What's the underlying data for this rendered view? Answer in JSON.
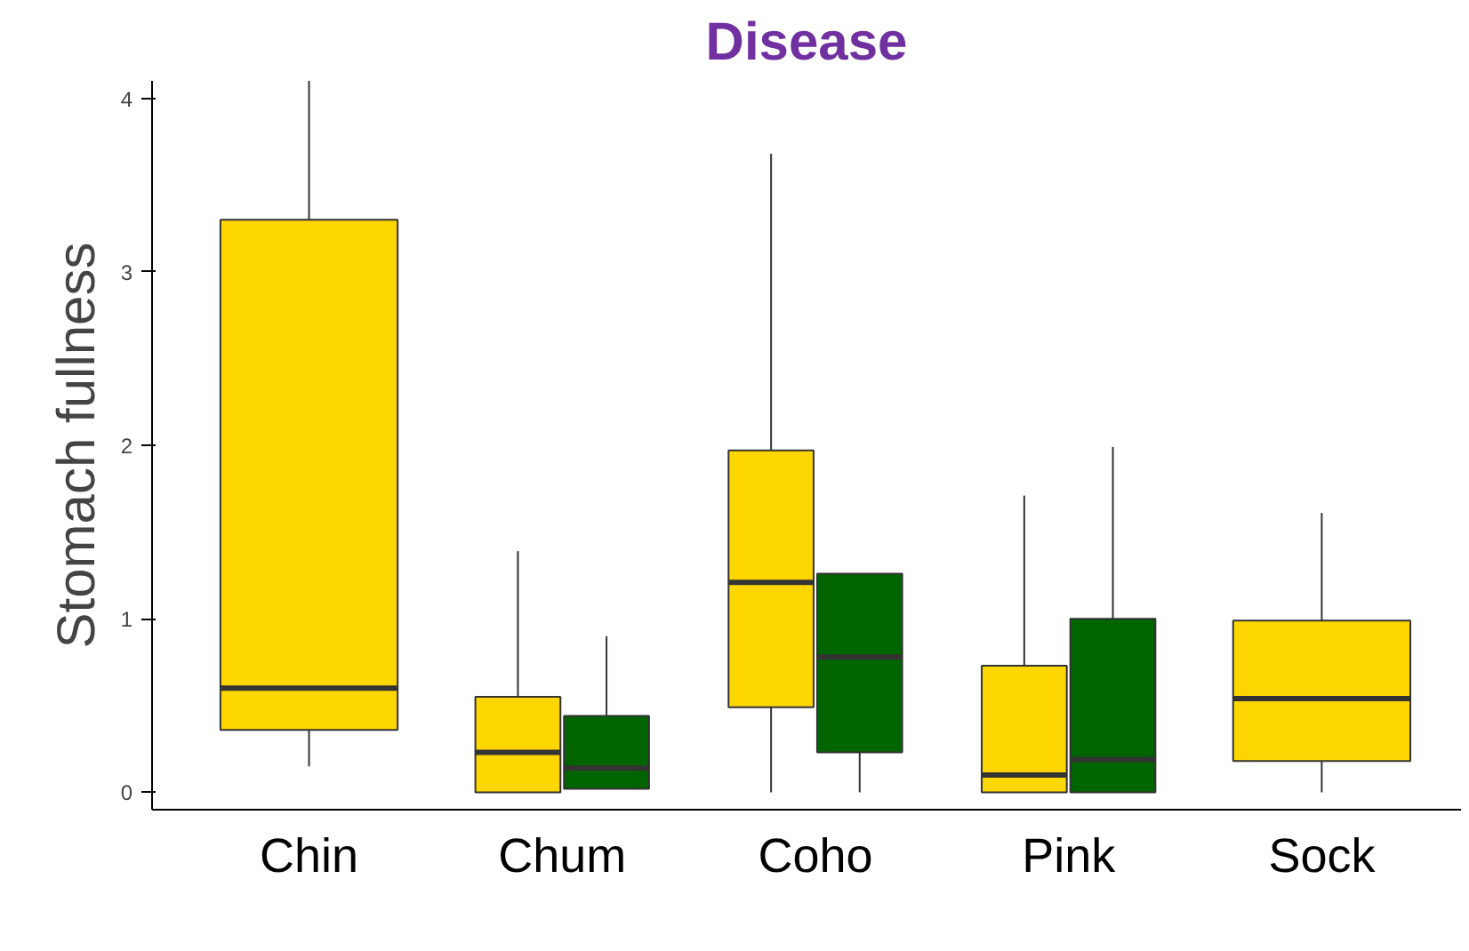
{
  "chart_data": {
    "type": "box",
    "title": "Disease",
    "ylabel": "Stomach fullness",
    "categories": [
      "Chin",
      "Chum",
      "Coho",
      "Pink",
      "Sock"
    ],
    "ylim": [
      -0.1,
      4.1
    ],
    "yticks": [
      0,
      1,
      2,
      3,
      4
    ],
    "grid": false,
    "series": [
      {
        "color": "#ffd700",
        "boxes": [
          {
            "low": 0.15,
            "q1": 0.36,
            "median": 0.6,
            "q3": 3.3,
            "high": 4.1
          },
          {
            "low": 0,
            "q1": 0,
            "median": 0.23,
            "q3": 0.55,
            "high": 1.39
          },
          {
            "low": 0,
            "q1": 0.49,
            "median": 1.21,
            "q3": 1.97,
            "high": 3.68
          },
          {
            "low": 0,
            "q1": 0,
            "median": 0.1,
            "q3": 0.73,
            "high": 1.71
          },
          {
            "low": 0,
            "q1": 0.18,
            "median": 0.54,
            "q3": 0.99,
            "high": 1.61
          }
        ]
      },
      {
        "color": "#006400",
        "boxes": [
          null,
          {
            "low": 0.02,
            "q1": 0.02,
            "median": 0.14,
            "q3": 0.44,
            "high": 0.9
          },
          {
            "low": 0,
            "q1": 0.23,
            "median": 0.78,
            "q3": 1.26,
            "high": 1.26
          },
          {
            "low": 0,
            "q1": 0,
            "median": 0.19,
            "q3": 1.0,
            "high": 1.99
          },
          null
        ]
      }
    ]
  }
}
